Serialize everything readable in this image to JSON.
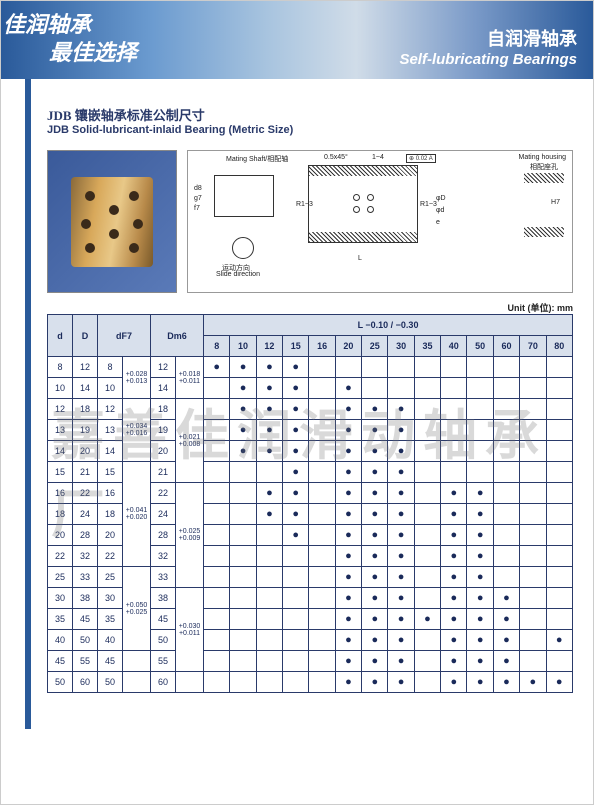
{
  "header": {
    "cn1": "佳润轴承",
    "cn2": "最佳选择",
    "right_cn": "自润滑轴承",
    "right_en": "Self-lubricating Bearings"
  },
  "title": {
    "cn": "JDB 镶嵌轴承标准公制尺寸",
    "en": "JDB Solid-lubricant-inlaid Bearing (Metric Size)"
  },
  "schematic_labels": {
    "shaft": "Mating Shaft/相配轴",
    "shaft_tol": "f7",
    "shaft_d1": "d8",
    "shaft_d2": "g7",
    "slide_cn": "运动方向",
    "slide_en": "Slide direction",
    "chamfer": "0.5x45°",
    "chamfer2": "1~4",
    "r1": "R1~3",
    "r2": "R1~3",
    "L": "L",
    "D": "φD",
    "d": "φd",
    "e": "e",
    "tol_box": "0.02 A",
    "housing": "Mating housing",
    "housing_cn": "相配座孔",
    "h7": "H7"
  },
  "unit_label": "Unit (单位): mm",
  "table": {
    "head_cols": [
      "d",
      "D",
      "dF7",
      "Dm6"
    ],
    "L_header": "L −0.10 / −0.30",
    "L_cols": [
      "8",
      "10",
      "12",
      "15",
      "16",
      "20",
      "25",
      "30",
      "35",
      "40",
      "50",
      "60",
      "70",
      "80"
    ],
    "rows": [
      {
        "d": "8",
        "D": "12",
        "dF7": "8",
        "tolF": "",
        "Dm": "12",
        "tolM": "",
        "L": [
          "8",
          "10",
          "12",
          "15"
        ]
      },
      {
        "d": "10",
        "D": "14",
        "dF7": "10",
        "tolF": "+0.028 +0.013",
        "Dm": "14",
        "tolM": "+0.018 +0.011",
        "L": [
          "10",
          "12",
          "15",
          "20"
        ]
      },
      {
        "d": "12",
        "D": "18",
        "dF7": "12",
        "tolF": "",
        "Dm": "18",
        "tolM": "",
        "L": [
          "10",
          "12",
          "15",
          "20",
          "25",
          "30"
        ]
      },
      {
        "d": "13",
        "D": "19",
        "dF7": "13",
        "tolF": "",
        "Dm": "19",
        "tolM": "",
        "L": [
          "10",
          "12",
          "15",
          "20",
          "25",
          "30"
        ]
      },
      {
        "d": "14",
        "D": "20",
        "dF7": "14",
        "tolF": "+0.034 +0.016",
        "Dm": "20",
        "tolM": "",
        "L": [
          "10",
          "12",
          "15",
          "20",
          "25",
          "30"
        ]
      },
      {
        "d": "15",
        "D": "21",
        "dF7": "15",
        "tolF": "",
        "Dm": "21",
        "tolM": "+0.021 +0.008",
        "L": [
          "15",
          "20",
          "25",
          "30"
        ]
      },
      {
        "d": "16",
        "D": "22",
        "dF7": "16",
        "tolF": "",
        "Dm": "22",
        "tolM": "",
        "L": [
          "12",
          "15",
          "20",
          "25",
          "30",
          "40",
          "50"
        ]
      },
      {
        "d": "18",
        "D": "24",
        "dF7": "18",
        "tolF": "",
        "Dm": "24",
        "tolM": "",
        "L": [
          "12",
          "15",
          "20",
          "25",
          "30",
          "40",
          "50"
        ]
      },
      {
        "d": "20",
        "D": "28",
        "dF7": "20",
        "tolF": "",
        "Dm": "28",
        "tolM": "",
        "L": [
          "15",
          "20",
          "25",
          "30",
          "40",
          "50"
        ]
      },
      {
        "d": "22",
        "D": "32",
        "dF7": "22",
        "tolF": "+0.041 +0.020",
        "Dm": "32",
        "tolM": "",
        "L": [
          "20",
          "25",
          "30",
          "40",
          "50"
        ]
      },
      {
        "d": "25",
        "D": "33",
        "dF7": "25",
        "tolF": "",
        "Dm": "33",
        "tolM": "+0.025 +0.009",
        "L": [
          "20",
          "25",
          "30",
          "40",
          "50"
        ]
      },
      {
        "d": "30",
        "D": "38",
        "dF7": "30",
        "tolF": "",
        "Dm": "38",
        "tolM": "",
        "L": [
          "20",
          "25",
          "30",
          "40",
          "50",
          "60"
        ]
      },
      {
        "d": "35",
        "D": "45",
        "dF7": "35",
        "tolF": "",
        "Dm": "45",
        "tolM": "",
        "L": [
          "20",
          "25",
          "30",
          "35",
          "40",
          "50",
          "60"
        ]
      },
      {
        "d": "40",
        "D": "50",
        "dF7": "40",
        "tolF": "+0.050 +0.025",
        "Dm": "50",
        "tolM": "",
        "L": [
          "20",
          "25",
          "30",
          "40",
          "50",
          "60",
          "80"
        ]
      },
      {
        "d": "45",
        "D": "55",
        "dF7": "45",
        "tolF": "",
        "Dm": "55",
        "tolM": "+0.030 +0.011",
        "L": [
          "20",
          "25",
          "30",
          "40",
          "50",
          "60"
        ]
      },
      {
        "d": "50",
        "D": "60",
        "dF7": "50",
        "tolF": "",
        "Dm": "60",
        "tolM": "",
        "L": [
          "20",
          "25",
          "30",
          "40",
          "50",
          "60",
          "70",
          "80"
        ]
      }
    ]
  },
  "watermark": "嘉善佳润滑动轴承厂",
  "colors": {
    "header_grad": "#2a5a9a",
    "table_border": "#2a3a6a",
    "th_bg": "#d8e0ec"
  }
}
